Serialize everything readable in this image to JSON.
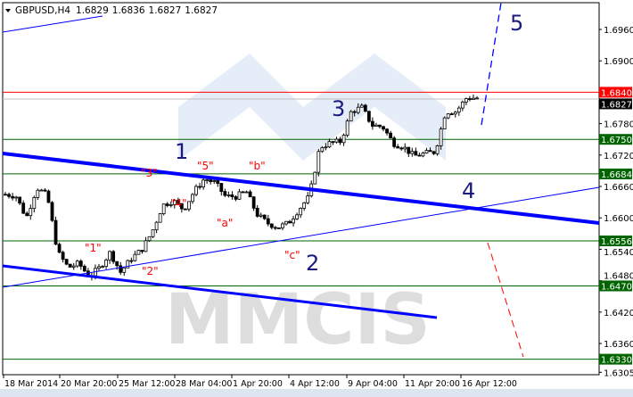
{
  "header": {
    "symbol": "GBPUSD,H4",
    "open": "1.6829",
    "high": "1.6836",
    "low": "1.6827",
    "close": "1.6827"
  },
  "watermark": "MMCIS",
  "chart_data": {
    "type": "candlestick",
    "symbol": "GBPUSD",
    "timeframe": "H4",
    "ylim": [
      1.6305,
      1.7
    ],
    "y_ticks": [
      "1.6960",
      "1.6900",
      "1.6780",
      "1.6720",
      "1.6660",
      "1.6600",
      "1.6540",
      "1.6480",
      "1.6420",
      "1.6360",
      "1.6305"
    ],
    "x_ticks": [
      "18 Mar 2014",
      "20 Mar 20:00",
      "25 Mar 12:00",
      "28 Mar 04:00",
      "1 Apr 20:00",
      "4 Apr 12:00",
      "9 Apr 04:00",
      "11 Apr 20:00",
      "16 Apr 12:00"
    ],
    "price_path": [
      1.6645,
      1.6642,
      1.66,
      1.6658,
      1.6642,
      1.6534,
      1.6505,
      1.6513,
      1.6488,
      1.6505,
      1.6534,
      1.6496,
      1.6522,
      1.6539,
      1.6573,
      1.6624,
      1.6633,
      1.6616,
      1.665,
      1.6675,
      1.6667,
      1.6641,
      1.6641,
      1.665,
      1.6607,
      1.659,
      1.6582,
      1.659,
      1.6616,
      1.6641,
      1.6735,
      1.6743,
      1.6746,
      1.6803,
      1.6811,
      1.6777,
      1.6774,
      1.6743,
      1.6735,
      1.6718,
      1.6723,
      1.6726,
      1.6803,
      1.6803,
      1.6829,
      1.6829
    ],
    "levels": [
      {
        "value": "1.6840",
        "color": "#ff0000"
      },
      {
        "value": "1.6827",
        "color": "#000000",
        "line": "#c0c0c0"
      },
      {
        "value": "1.6750",
        "color": "#006400"
      },
      {
        "value": "1.6684",
        "color": "#006400"
      },
      {
        "value": "1.6556",
        "color": "#006400"
      },
      {
        "value": "1.6470",
        "color": "#006400"
      },
      {
        "value": "1.6330",
        "color": "#006400"
      }
    ],
    "wave_labels_major": [
      "1",
      "2",
      "3",
      "4",
      "5"
    ],
    "wave_labels_minor": [
      "\"1\"",
      "\"2\"",
      "\"3\"",
      "\"4\"",
      "\"5\"",
      "\"a\"",
      "\"b\"",
      "\"c\""
    ],
    "colors": {
      "trend": "#0000ff",
      "major_label": "#1a1a80",
      "minor_label": "#ff0000",
      "level": "#006400",
      "watermark_blue": "#c8d8f0",
      "watermark_gray": "#c8c8c8"
    }
  }
}
